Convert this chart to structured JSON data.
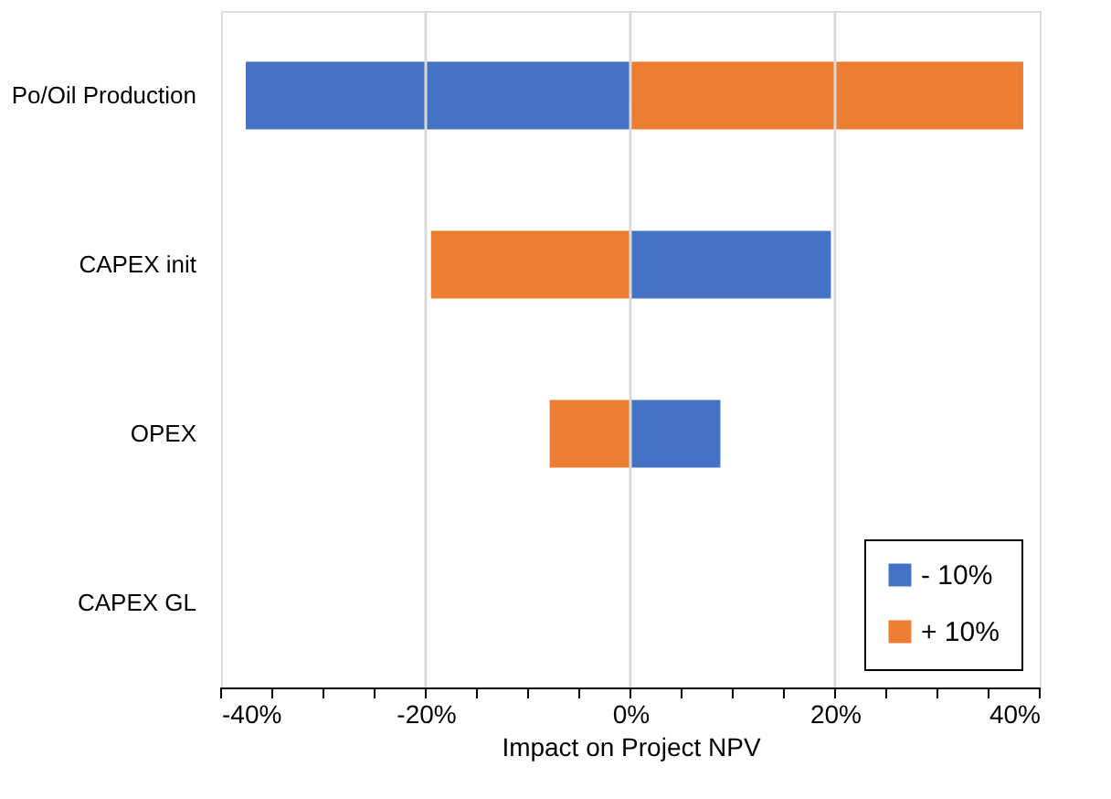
{
  "chart_data": {
    "type": "bar",
    "orientation": "horizontal",
    "xlabel": "Impact on Project NPV",
    "categories": [
      "Po/Oil Production",
      "CAPEX init",
      "OPEX",
      "CAPEX GL"
    ],
    "series": [
      {
        "name": "- 10%",
        "color": "#4472c4",
        "values": [
          -37.5,
          19.5,
          8.7,
          0
        ]
      },
      {
        "name": "+ 10%",
        "color": "#ed7d31",
        "values": [
          38.3,
          -19.4,
          -7.8,
          0
        ]
      }
    ],
    "xlim": [
      -40,
      40
    ],
    "xticks": [
      {
        "value": -40,
        "label": "-40%"
      },
      {
        "value": -35,
        "label": null
      },
      {
        "value": -30,
        "label": null
      },
      {
        "value": -25,
        "label": null
      },
      {
        "value": -20,
        "label": "-20%"
      },
      {
        "value": -15,
        "label": null
      },
      {
        "value": -10,
        "label": null
      },
      {
        "value": -5,
        "label": null
      },
      {
        "value": 0,
        "label": "0%"
      },
      {
        "value": 5,
        "label": null
      },
      {
        "value": 10,
        "label": null
      },
      {
        "value": 15,
        "label": null
      },
      {
        "value": 20,
        "label": "20%"
      },
      {
        "value": 25,
        "label": null
      },
      {
        "value": 30,
        "label": null
      },
      {
        "value": 35,
        "label": null
      },
      {
        "value": 40,
        "label": "40%"
      }
    ],
    "grid": "x",
    "legend": "bottom right",
    "stacked": true
  }
}
